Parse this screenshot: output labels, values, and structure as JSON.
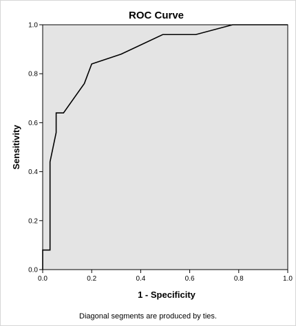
{
  "chart_data": {
    "type": "line",
    "title": "ROC Curve",
    "xlabel": "1 - Specificity",
    "ylabel": "Sensitivity",
    "xlim": [
      0.0,
      1.0
    ],
    "ylim": [
      0.0,
      1.0
    ],
    "x_ticks": [
      "0.0",
      "0.2",
      "0.4",
      "0.6",
      "0.8",
      "1.0"
    ],
    "y_ticks": [
      "0.0",
      "0.2",
      "0.4",
      "0.6",
      "0.8",
      "1.0"
    ],
    "grid": false,
    "plot_background": "#e4e4e4",
    "line_color": "#000000",
    "series": [
      {
        "x": [
          0.0,
          0.0,
          0.03,
          0.03,
          0.055,
          0.055,
          0.085,
          0.17,
          0.2,
          0.32,
          0.49,
          0.625,
          0.775,
          1.0
        ],
        "y": [
          0.0,
          0.08,
          0.08,
          0.44,
          0.56,
          0.64,
          0.64,
          0.76,
          0.84,
          0.88,
          0.96,
          0.96,
          1.0,
          1.0
        ]
      }
    ],
    "footnote": "Diagonal segments are produced by ties."
  }
}
